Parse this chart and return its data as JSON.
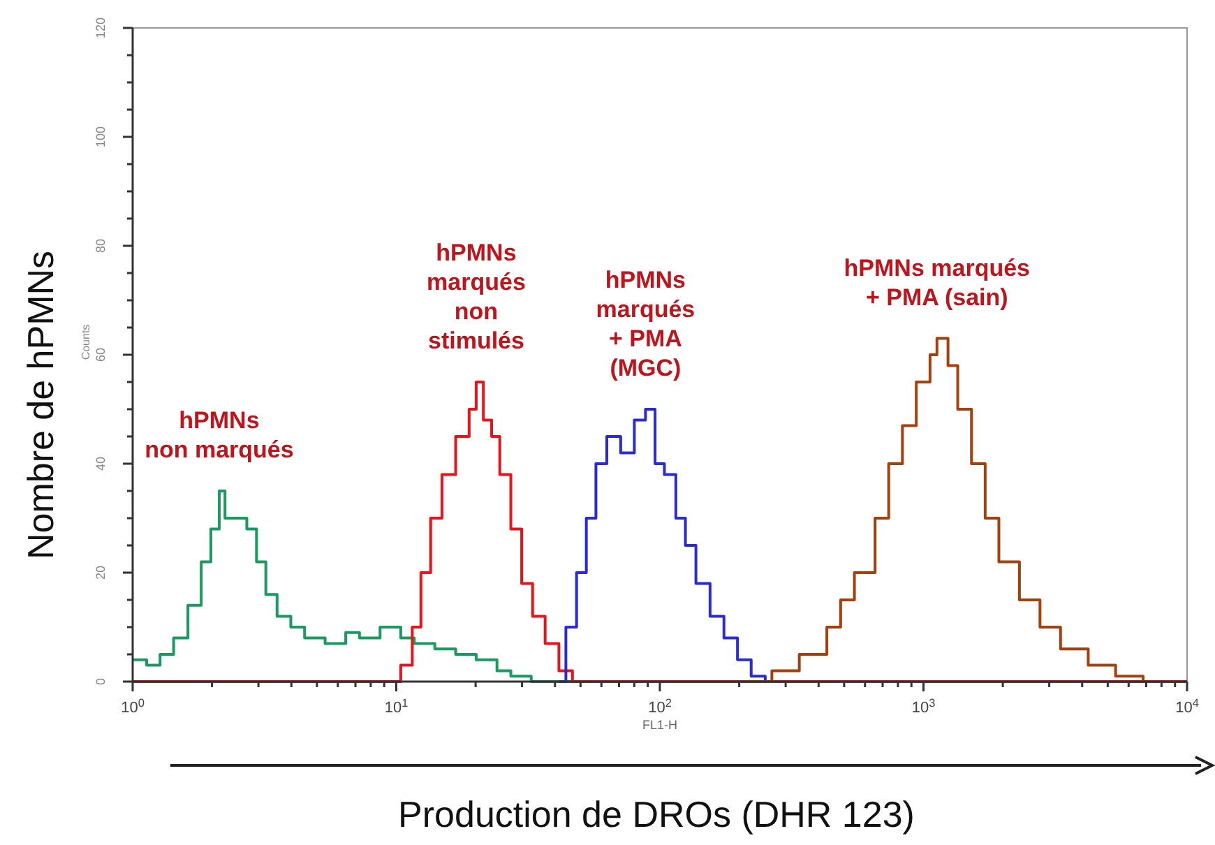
{
  "chart_data": {
    "type": "step",
    "xlabel": "Production de DROs (DHR 123)",
    "ylabel": "Nombre de hPMNs",
    "log": "x",
    "grid": false,
    "xlim": [
      1,
      10000
    ],
    "ylim": [
      0,
      120
    ],
    "xticks": [
      {
        "value": 1,
        "label": "10$^{0}$"
      },
      {
        "value": 2,
        "label": null
      },
      {
        "value": 3,
        "label": null
      },
      {
        "value": 4,
        "label": null
      },
      {
        "value": 5,
        "label": null
      },
      {
        "value": 6,
        "label": null
      },
      {
        "value": 7,
        "label": null
      },
      {
        "value": 8,
        "label": null
      },
      {
        "value": 9,
        "label": null
      },
      {
        "value": 10,
        "label": "10$^{1}$"
      },
      {
        "value": 20,
        "label": null
      },
      {
        "value": 30,
        "label": null
      },
      {
        "value": 40,
        "label": null
      },
      {
        "value": 50,
        "label": null
      },
      {
        "value": 60,
        "label": null
      },
      {
        "value": 70,
        "label": null
      },
      {
        "value": 80,
        "label": null
      },
      {
        "value": 90,
        "label": null
      },
      {
        "value": 100,
        "label": "10$^{2}$"
      },
      {
        "value": 200,
        "label": null
      },
      {
        "value": 300,
        "label": null
      },
      {
        "value": 400,
        "label": null
      },
      {
        "value": 500,
        "label": null
      },
      {
        "value": 600,
        "label": null
      },
      {
        "value": 700,
        "label": null
      },
      {
        "value": 800,
        "label": null
      },
      {
        "value": 900,
        "label": null
      },
      {
        "value": 1000,
        "label": "10$^{3}$"
      },
      {
        "value": 2000,
        "label": null
      },
      {
        "value": 3000,
        "label": null
      },
      {
        "value": 4000,
        "label": null
      },
      {
        "value": 5000,
        "label": null
      },
      {
        "value": 6000,
        "label": null
      },
      {
        "value": 7000,
        "label": null
      },
      {
        "value": 8000,
        "label": null
      },
      {
        "value": 9000,
        "label": null
      },
      {
        "value": 10000,
        "label": "10$^{4}$"
      }
    ],
    "yticks": [
      0,
      {
        "value": 5,
        "label": null
      },
      {
        "value": 10,
        "label": null
      },
      {
        "value": 15,
        "label": null
      },
      20,
      {
        "value": 25,
        "label": null
      },
      {
        "value": 30,
        "label": null
      },
      {
        "value": 35,
        "label": null
      },
      40,
      {
        "value": 45,
        "label": null
      },
      {
        "value": 50,
        "label": null
      },
      {
        "value": 55,
        "label": null
      },
      60,
      {
        "value": 65,
        "label": null
      },
      {
        "value": 70,
        "label": null
      },
      {
        "value": 75,
        "label": null
      },
      80,
      {
        "value": 85,
        "label": null
      },
      {
        "value": 90,
        "label": null
      },
      {
        "value": 95,
        "label": null
      },
      100,
      {
        "value": 105,
        "label": null
      },
      {
        "value": 110,
        "label": null
      },
      {
        "value": 115,
        "label": null
      },
      120
    ],
    "annotations": [
      "Counts",
      "FL1-H"
    ],
    "series": [
      {
        "name": "hPMNs\nnon marqués",
        "color": "#1a9960",
        "x": [
          1,
          1.13,
          1.27,
          1.43,
          1.62,
          1.82,
          1.98,
          2.13,
          2.24,
          2.46,
          2.71,
          2.95,
          3.2,
          3.53,
          3.98,
          4.49,
          5.37,
          6.43,
          7.25,
          8.68,
          10.4,
          11.7,
          14,
          16.8,
          20.1,
          24.1,
          27.2,
          32.5,
          39,
          10000
        ],
        "values": [
          4,
          3,
          5,
          8,
          14,
          22,
          28,
          35,
          30,
          30,
          28,
          22,
          16,
          12,
          10,
          8,
          7,
          9,
          8,
          10,
          8,
          7,
          6,
          5,
          4,
          2,
          1,
          0,
          0,
          0
        ]
      },
      {
        "name": "hPMNs\nmarqués\nnon\nstimulés",
        "color": "#e8141c",
        "x": [
          1,
          9.22,
          10.4,
          11.5,
          12.4,
          13.5,
          14.9,
          16.8,
          18.9,
          20.1,
          21.4,
          23,
          24.7,
          27.2,
          29.9,
          32.9,
          36.7,
          41.4,
          46.6,
          10000
        ],
        "values": [
          0,
          0,
          3,
          10,
          20,
          30,
          38,
          45,
          50,
          55,
          48,
          45,
          38,
          28,
          18,
          12,
          7,
          2,
          0,
          0
        ]
      },
      {
        "name": "hPMNs\nmarqués\n+ PMA\n(MGC)",
        "color": "#2a2ad6",
        "x": [
          41.4,
          44,
          48.3,
          52.6,
          57.2,
          62.9,
          71,
          80,
          88.2,
          95.9,
          104,
          115,
          125,
          137,
          155,
          175,
          197,
          222,
          251
        ],
        "values": [
          0,
          10,
          20,
          30,
          40,
          45,
          42,
          48,
          50,
          40,
          38,
          30,
          25,
          18,
          12,
          8,
          4,
          1,
          0
        ]
      },
      {
        "name": "hPMNs marqués\n+ PMA (sain)",
        "color": "#a5400e",
        "x": [
          209,
          266,
          338,
          430,
          485,
          547,
          655,
          738,
          832,
          939,
          1059,
          1125,
          1239,
          1349,
          1521,
          1714,
          1932,
          2312,
          2767,
          3311,
          4217,
          5358,
          6808
        ],
        "values": [
          0,
          2,
          5,
          10,
          15,
          20,
          30,
          40,
          47,
          55,
          60,
          63,
          58,
          50,
          40,
          30,
          22,
          15,
          10,
          6,
          3,
          1,
          0
        ]
      }
    ]
  }
}
